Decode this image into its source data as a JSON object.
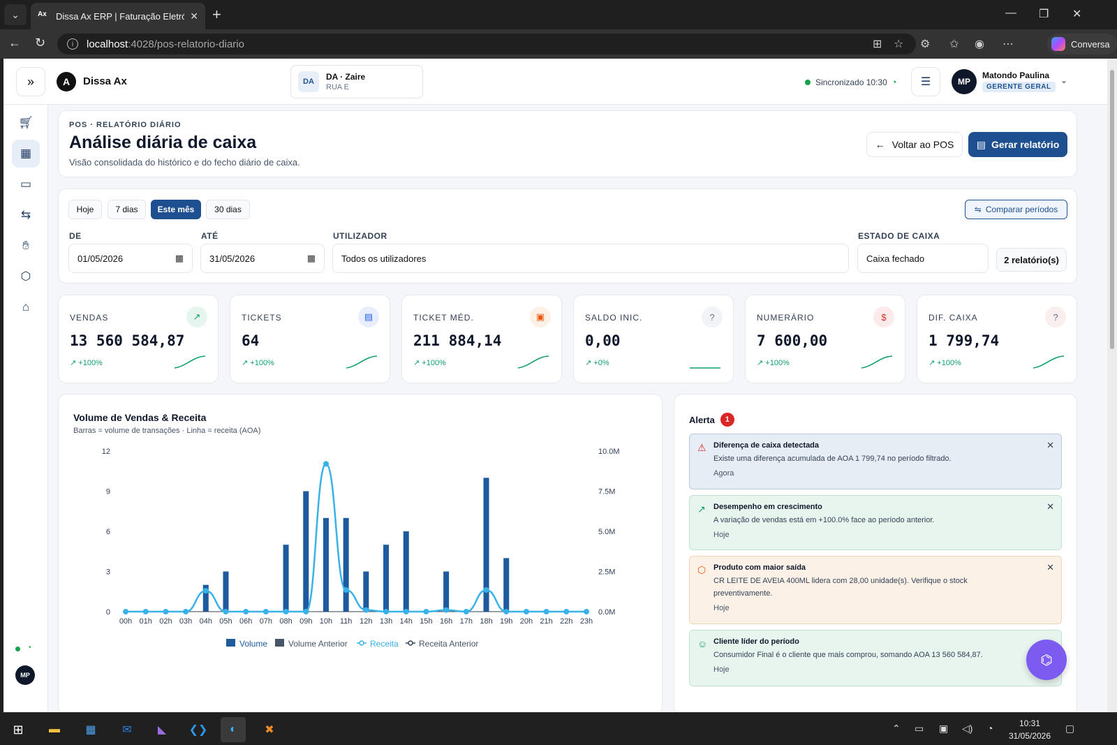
{
  "browser": {
    "tab_title": "Dissa Ax ERP | Faturação Eletrónica",
    "tab_favicon": "Ax",
    "url_host": "localhost",
    "url_path": ":4028/pos-relatorio-diario",
    "copilot_label": "Conversa"
  },
  "header": {
    "brand": "Dissa Ax",
    "brand_logo": "A",
    "store_badge": "DA",
    "store_name": "DA · Zaire",
    "store_sub": "RUA E",
    "sync_text": "Sincronizado 10:30",
    "user_initials": "MP",
    "user_name": "Matondo Paulina",
    "user_role": "GERENTE GERAL"
  },
  "page": {
    "eyebrow": "POS · RELATÓRIO DIÁRIO",
    "title": "Análise diária de caixa",
    "subtitle": "Visão consolidada do histórico e do fecho diário de caixa.",
    "back_label": "Voltar ao POS",
    "report_label": "Gerar relatório"
  },
  "filters": {
    "chips": [
      "Hoje",
      "7 dias",
      "Este mês",
      "30 dias"
    ],
    "active_chip": "Este mês",
    "compare_label": "Comparar períodos",
    "de_label": "DE",
    "de_value": "01/05/2026",
    "ate_label": "ATÉ",
    "ate_value": "31/05/2026",
    "user_label": "UTILIZADOR",
    "user_value": "Todos os utilizadores",
    "cash_label": "ESTADO DE CAIXA",
    "cash_value": "Caixa fechado",
    "report_count": "2 relatório(s)"
  },
  "kpis": [
    {
      "label": "VENDAS",
      "value": "13 560 584,87",
      "trend": "+100%",
      "icon": "trend-up-icon",
      "color": "#0f9f6e",
      "bg": "#e6f6ef"
    },
    {
      "label": "TICKETS",
      "value": "64",
      "trend": "+100%",
      "icon": "receipt-icon",
      "color": "#2563eb",
      "bg": "#e8eefb"
    },
    {
      "label": "TICKET MÉD.",
      "value": "211 884,14",
      "trend": "+100%",
      "icon": "wallet-icon",
      "color": "#ea580c",
      "bg": "#fdf0e6"
    },
    {
      "label": "SALDO INIC.",
      "value": "0,00",
      "trend": "+0%",
      "icon": "help-icon",
      "color": "#64748b",
      "bg": "#f1f3f6"
    },
    {
      "label": "NUMERÁRIO",
      "value": "7 600,00",
      "trend": "+100%",
      "icon": "cash-icon",
      "color": "#dc2626",
      "bg": "#fdeaea"
    },
    {
      "label": "DIF. CAIXA",
      "value": "1 799,74",
      "trend": "+100%",
      "icon": "help-icon",
      "color": "#64748b",
      "bg": "#fbeeee"
    }
  ],
  "chart_data": {
    "type": "bar",
    "title": "Volume de Vendas & Receita",
    "subtitle": "Barras = volume de transações · Linha = receita (AOA)",
    "categories": [
      "00h",
      "01h",
      "02h",
      "03h",
      "04h",
      "05h",
      "06h",
      "07h",
      "08h",
      "09h",
      "10h",
      "11h",
      "12h",
      "13h",
      "14h",
      "15h",
      "16h",
      "17h",
      "18h",
      "19h",
      "20h",
      "21h",
      "22h",
      "23h"
    ],
    "series": [
      {
        "name": "Volume",
        "axis": "left",
        "kind": "bar",
        "color": "#1e5a9e",
        "values": [
          0,
          0,
          0,
          0,
          2,
          3,
          0,
          0,
          5,
          9,
          7,
          7,
          3,
          5,
          6,
          0,
          3,
          0,
          10,
          4,
          0,
          0,
          0,
          0
        ]
      },
      {
        "name": "Volume Anterior",
        "axis": "left",
        "kind": "bar",
        "color": "#475569",
        "values": [
          0,
          0,
          0,
          0,
          0,
          0,
          0,
          0,
          0,
          0,
          0,
          0,
          0,
          0,
          0,
          0,
          0,
          0,
          0,
          0,
          0,
          0,
          0,
          0
        ]
      },
      {
        "name": "Receita",
        "axis": "right",
        "kind": "line",
        "color": "#38b2e8",
        "values": [
          0,
          0,
          0,
          0,
          1300000,
          0,
          0,
          0,
          0,
          0,
          9200000,
          1350000,
          100000,
          0,
          0,
          0,
          100000,
          0,
          1350000,
          0,
          0,
          0,
          0,
          0
        ]
      },
      {
        "name": "Receita Anterior",
        "axis": "right",
        "kind": "line",
        "color": "#334155",
        "values": [
          0,
          0,
          0,
          0,
          0,
          0,
          0,
          0,
          0,
          0,
          0,
          0,
          0,
          0,
          0,
          0,
          0,
          0,
          0,
          0,
          0,
          0,
          0,
          0
        ]
      }
    ],
    "y_left": {
      "ticks": [
        "0",
        "3",
        "6",
        "9",
        "12"
      ],
      "range": [
        0,
        12
      ]
    },
    "y_right": {
      "ticks": [
        "0.0M",
        "2.5M",
        "5.0M",
        "7.5M",
        "10.0M"
      ],
      "range": [
        0,
        10000000
      ]
    },
    "legend_position": "bottom",
    "grid": false
  },
  "alerts": {
    "title": "Alerta",
    "count": "1",
    "items": [
      {
        "title": "Diferença de caixa detectada",
        "body": "Existe uma diferença acumulada de AOA 1 799,74 no período filtrado.",
        "time": "Agora",
        "icon": "warning-icon",
        "bg": "#e7edf5",
        "border": "#b9c8dc",
        "icon_color": "#dc2626"
      },
      {
        "title": "Desempenho em crescimento",
        "body": "A variação de vendas está em +100.0% face ao período anterior.",
        "time": "Hoje",
        "icon": "trend-up-icon",
        "bg": "#e8f5ef",
        "border": "#bfe3d1",
        "icon_color": "#0f9f6e"
      },
      {
        "title": "Produto com maior saída",
        "body": "CR LEITE DE AVEIA 400ML lidera com 28,00 unidade(s). Verifique o stock preventivamente.",
        "time": "Hoje",
        "icon": "package-icon",
        "bg": "#fcf1e7",
        "border": "#f2d2b4",
        "icon_color": "#ea580c"
      },
      {
        "title": "Cliente líder do período",
        "body": "Consumidor Final é o cliente que mais comprou, somando AOA 13 560 584,87.",
        "time": "Hoje",
        "icon": "users-icon",
        "bg": "#e8f5ef",
        "border": "#bfe3d1",
        "icon_color": "#0f9f6e"
      }
    ]
  },
  "sidebar": {
    "items": [
      "cart-icon",
      "calendar-icon",
      "inbox-icon",
      "transfer-icon",
      "hand-coins-icon",
      "box-icon",
      "home-icon"
    ],
    "active": "calendar-icon",
    "user_initials": "MP"
  },
  "taskbar": {
    "time": "10:31",
    "date": "31/05/2026"
  }
}
